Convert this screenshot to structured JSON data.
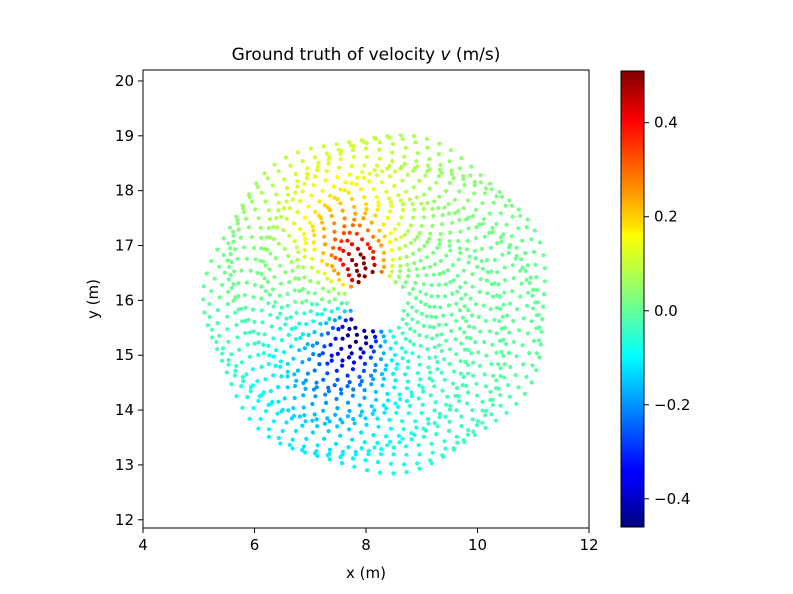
{
  "chart_data": {
    "type": "scatter",
    "title": "Ground truth of velocity v (m/s)",
    "title_parts": {
      "prefix": "Ground truth of velocity ",
      "variable": "v",
      "suffix": " (m/s)"
    },
    "xlabel": "x (m)",
    "ylabel": "y (m)",
    "xlim": [
      4,
      12
    ],
    "ylim": [
      11.85,
      20.2
    ],
    "xticks": [
      4,
      6,
      8,
      10,
      12
    ],
    "yticks": [
      12,
      13,
      14,
      15,
      16,
      17,
      18,
      19,
      20
    ],
    "grid": false,
    "colormap": "jet",
    "color_range": [
      -0.46,
      0.51
    ],
    "colorbar": {
      "ticks": [
        0.4,
        0.2,
        0.0,
        -0.2,
        -0.4
      ],
      "tick_labels": [
        "0.4",
        "0.2",
        "0.0",
        "−0.2",
        "−0.4"
      ]
    },
    "field": {
      "center": [
        8.2,
        15.95
      ],
      "outer_radius": 3.05,
      "inner_radius": 0.55,
      "inner_shape": "pentagon",
      "rings": 25,
      "max_velocity": 0.51,
      "min_velocity": -0.46,
      "description": "Point cloud around a pentagonal obstacle; positive v in upper-left wake, negative v in lower-left"
    }
  }
}
